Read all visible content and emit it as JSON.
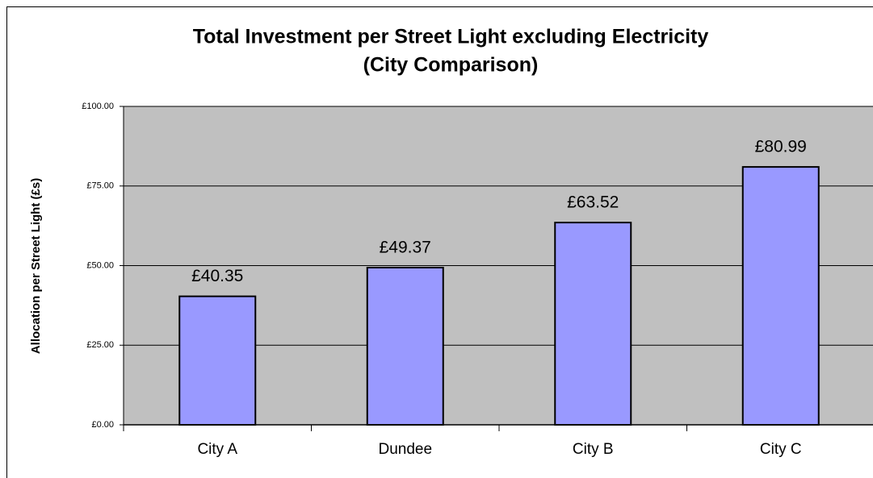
{
  "chart_data": {
    "type": "bar",
    "title": "Total Investment per Street Light excluding Electricity",
    "subtitle": "(City Comparison)",
    "y_label": "Allocation per Street Light (£s)",
    "categories": [
      "City A",
      "Dundee",
      "City B",
      "City C"
    ],
    "values": [
      40.35,
      49.37,
      63.52,
      80.99
    ],
    "value_labels": [
      "£40.35",
      "£49.37",
      "£63.52",
      "£80.99"
    ],
    "color": "#9999ff",
    "ylim": [
      0,
      100
    ],
    "yticks": [
      {
        "value": 0,
        "label": "£0.00"
      },
      {
        "value": 25,
        "label": "£25.00"
      },
      {
        "value": 50,
        "label": "£50.00"
      },
      {
        "value": 75,
        "label": "£75.00"
      },
      {
        "value": 100,
        "label": "£100.00"
      }
    ],
    "grid": true
  }
}
